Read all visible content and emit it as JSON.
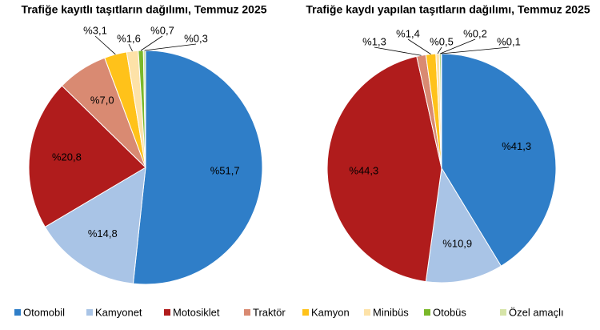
{
  "chart_data": [
    {
      "type": "pie",
      "title": "Trafiğe kayıtlı taşıtların dağılımı, Temmuz 2025",
      "categories": [
        "Otomobil",
        "Kamyonet",
        "Motosiklet",
        "Traktör",
        "Kamyon",
        "Minibüs",
        "Otobüs",
        "Özel amaçlı"
      ],
      "values": [
        51.7,
        14.8,
        20.8,
        7.0,
        3.1,
        1.6,
        0.7,
        0.3
      ],
      "value_labels": [
        "%51,7",
        "%14,8",
        "%20,8",
        "%7,0",
        "%3,1",
        "%1,6",
        "%0,7",
        "%0,3"
      ],
      "colors": [
        "#2f7ec8",
        "#a9c4e6",
        "#b01c1c",
        "#d98a72",
        "#ffc21a",
        "#fde2a8",
        "#7ab82a",
        "#d6e4a8"
      ]
    },
    {
      "type": "pie",
      "title": "Trafiğe kaydı yapılan taşıtların dağılımı, Temmuz 2025",
      "categories": [
        "Otomobil",
        "Kamyonet",
        "Motosiklet",
        "Traktör",
        "Kamyon",
        "Minibüs",
        "Otobüs",
        "Özel amaçlı"
      ],
      "values": [
        41.3,
        10.9,
        44.3,
        1.3,
        1.4,
        0.5,
        0.2,
        0.1
      ],
      "value_labels": [
        "%41,3",
        "%10,9",
        "%44,3",
        "%1,3",
        "%1,4",
        "%0,5",
        "%0,2",
        "%0,1"
      ],
      "colors": [
        "#2f7ec8",
        "#a9c4e6",
        "#b01c1c",
        "#d98a72",
        "#ffc21a",
        "#fde2a8",
        "#7ab82a",
        "#d6e4a8"
      ]
    }
  ]
}
